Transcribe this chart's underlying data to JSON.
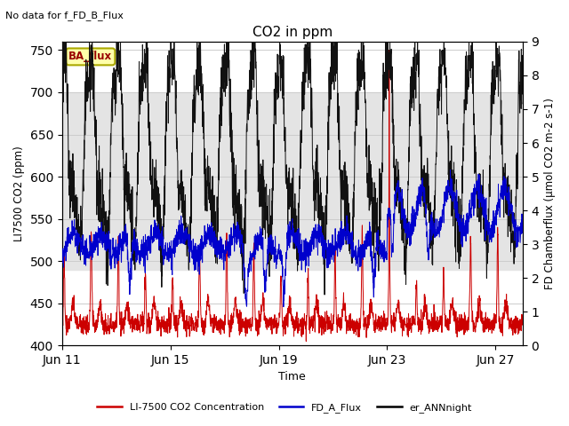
{
  "title": "CO2 in ppm",
  "title_note": "No data for f_FD_B_Flux",
  "xlabel": "Time",
  "ylabel_left": "LI7500 CO2 (ppm)",
  "ylabel_right": "FD Chamberflux (μmol CO2 m-2 s-1)",
  "xlim_days": [
    0,
    17
  ],
  "ylim_left": [
    400,
    760
  ],
  "ylim_right": [
    0.0,
    9.0
  ],
  "yticks_left": [
    400,
    450,
    500,
    550,
    600,
    650,
    700,
    750
  ],
  "yticks_right": [
    0.0,
    1.0,
    2.0,
    3.0,
    4.0,
    5.0,
    6.0,
    7.0,
    8.0,
    9.0
  ],
  "xtick_labels": [
    "Jun 11",
    "Jun 15",
    "Jun 19",
    "Jun 23",
    "Jun 27"
  ],
  "xtick_positions": [
    0,
    4,
    8,
    12,
    16
  ],
  "legend_labels": [
    "LI-7500 CO2 Concentration",
    "FD_A_Flux",
    "er_ANNnight"
  ],
  "legend_colors": [
    "#cc0000",
    "#0000cc",
    "#000000"
  ],
  "line_colors": {
    "red": "#cc0000",
    "blue": "#0000cc",
    "black": "#111111"
  },
  "ba_flux_label": "BA_flux",
  "ba_flux_bg": "#ffffaa",
  "ba_flux_border": "#aaa800",
  "ba_flux_text_color": "#990000",
  "grid_color": "#cccccc",
  "plot_bg": "#ffffff",
  "band_lo": 490,
  "band_hi": 700,
  "band_color": "#e4e4e4"
}
